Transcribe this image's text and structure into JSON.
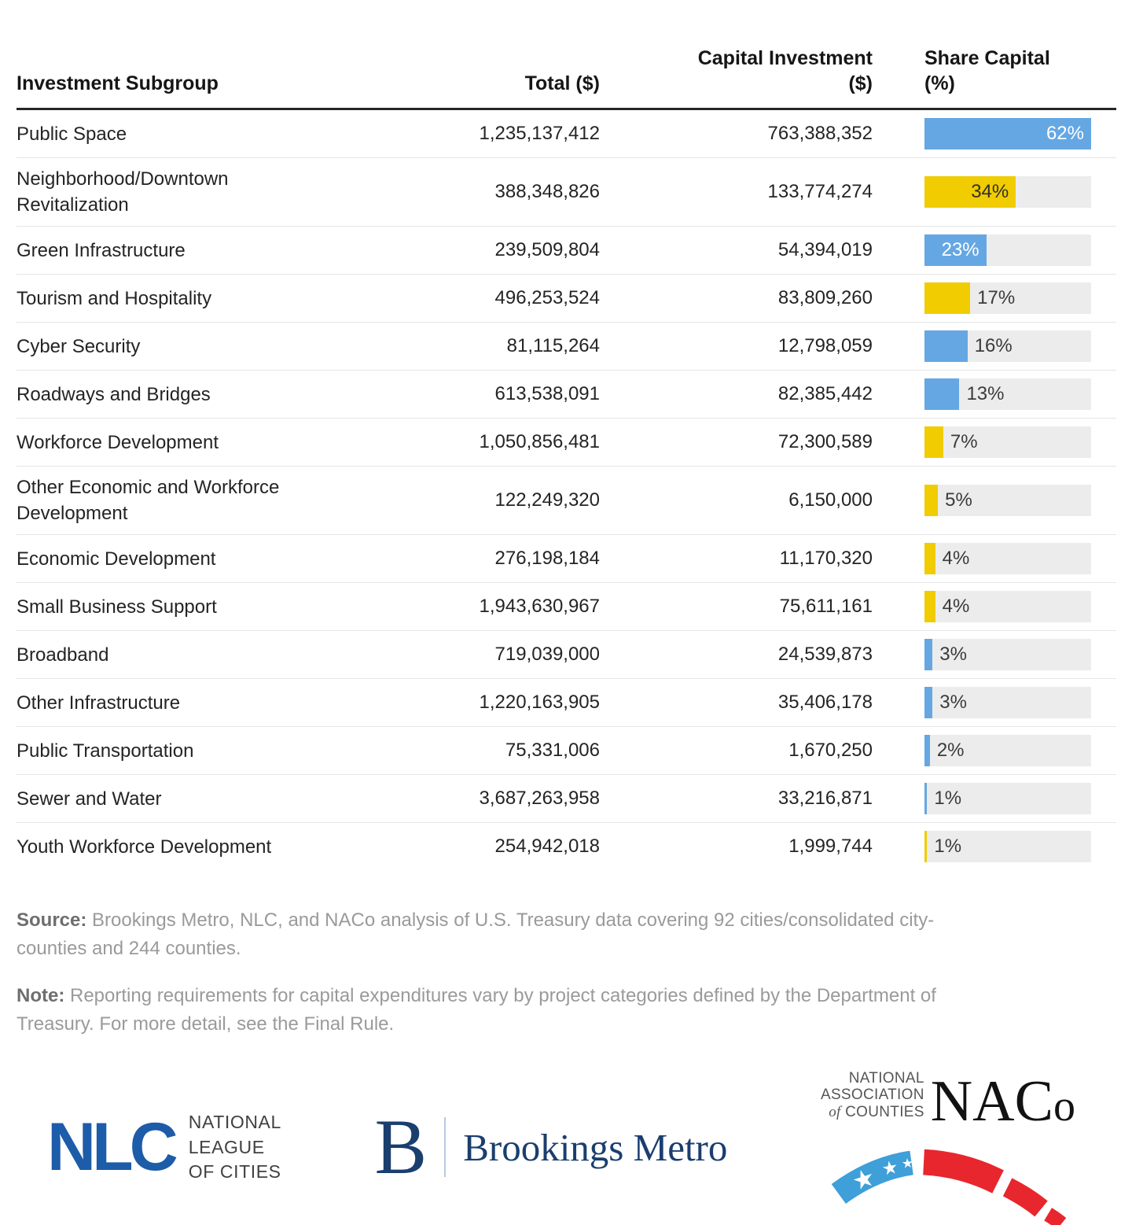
{
  "chart_data": {
    "type": "table",
    "columns": [
      "Investment Subgroup",
      "Total ($)",
      "Capital Investment ($)",
      "Share Capital (%)"
    ],
    "bar_max_pct": 62,
    "rows": [
      {
        "subgroup": "Public Space",
        "total": "1,235,137,412",
        "capital": "763,388,352",
        "share_pct": 62,
        "share_label": "62%",
        "bar_color": "blue",
        "label_inside": true
      },
      {
        "subgroup": "Neighborhood/Downtown Revitalization",
        "total": "388,348,826",
        "capital": "133,774,274",
        "share_pct": 34,
        "share_label": "34%",
        "bar_color": "yellow",
        "label_inside": true
      },
      {
        "subgroup": "Green Infrastructure",
        "total": "239,509,804",
        "capital": "54,394,019",
        "share_pct": 23,
        "share_label": "23%",
        "bar_color": "blue",
        "label_inside": true
      },
      {
        "subgroup": "Tourism and Hospitality",
        "total": "496,253,524",
        "capital": "83,809,260",
        "share_pct": 17,
        "share_label": "17%",
        "bar_color": "yellow",
        "label_inside": false
      },
      {
        "subgroup": "Cyber Security",
        "total": "81,115,264",
        "capital": "12,798,059",
        "share_pct": 16,
        "share_label": "16%",
        "bar_color": "blue",
        "label_inside": false
      },
      {
        "subgroup": "Roadways and Bridges",
        "total": "613,538,091",
        "capital": "82,385,442",
        "share_pct": 13,
        "share_label": "13%",
        "bar_color": "blue",
        "label_inside": false
      },
      {
        "subgroup": "Workforce Development",
        "total": "1,050,856,481",
        "capital": "72,300,589",
        "share_pct": 7,
        "share_label": "7%",
        "bar_color": "yellow",
        "label_inside": false
      },
      {
        "subgroup": "Other Economic and Workforce Development",
        "total": "122,249,320",
        "capital": "6,150,000",
        "share_pct": 5,
        "share_label": "5%",
        "bar_color": "yellow",
        "label_inside": false
      },
      {
        "subgroup": "Economic Development",
        "total": "276,198,184",
        "capital": "11,170,320",
        "share_pct": 4,
        "share_label": "4%",
        "bar_color": "yellow",
        "label_inside": false
      },
      {
        "subgroup": "Small Business Support",
        "total": "1,943,630,967",
        "capital": "75,611,161",
        "share_pct": 4,
        "share_label": "4%",
        "bar_color": "yellow",
        "label_inside": false
      },
      {
        "subgroup": "Broadband",
        "total": "719,039,000",
        "capital": "24,539,873",
        "share_pct": 3,
        "share_label": "3%",
        "bar_color": "blue",
        "label_inside": false
      },
      {
        "subgroup": "Other Infrastructure",
        "total": "1,220,163,905",
        "capital": "35,406,178",
        "share_pct": 3,
        "share_label": "3%",
        "bar_color": "blue",
        "label_inside": false
      },
      {
        "subgroup": "Public Transportation",
        "total": "75,331,006",
        "capital": "1,670,250",
        "share_pct": 2,
        "share_label": "2%",
        "bar_color": "blue",
        "label_inside": false
      },
      {
        "subgroup": "Sewer and Water",
        "total": "3,687,263,958",
        "capital": "33,216,871",
        "share_pct": 1,
        "share_label": "1%",
        "bar_color": "blue",
        "label_inside": false
      },
      {
        "subgroup": "Youth Workforce Development",
        "total": "254,942,018",
        "capital": "1,999,744",
        "share_pct": 1,
        "share_label": "1%",
        "bar_color": "yellow",
        "label_inside": false
      }
    ]
  },
  "colors": {
    "bar_blue": "#65A7E3",
    "bar_yellow": "#F0CC00",
    "bar_track": "#ECECEC",
    "nlc_blue": "#1d5ca9",
    "brookings_navy": "#1a3e6e",
    "naco_red": "#E8262D",
    "naco_blue": "#3E9FD9"
  },
  "footer": {
    "source_label": "Source:",
    "source_text": " Brookings Metro, NLC, and NACo analysis of U.S. Treasury data covering 92 cities/consolidated city-counties and 244 counties.",
    "note_label": "Note:",
    "note_text": " Reporting requirements for capital expenditures vary by project categories defined by the Department of Treasury. For more detail, see the Final Rule."
  },
  "logos": {
    "nlc": {
      "abbr": "NLC",
      "line1": "NATIONAL",
      "line2": "LEAGUE",
      "line3": "OF CITIES"
    },
    "brookings": {
      "initial": "B",
      "name": "Brookings Metro"
    },
    "naco": {
      "line1": "NATIONAL",
      "line2": "ASSOCIATION",
      "line3_of": "of",
      "line3_rest": " COUNTIES",
      "abbr_nac": "NAC",
      "abbr_o": "o"
    }
  }
}
